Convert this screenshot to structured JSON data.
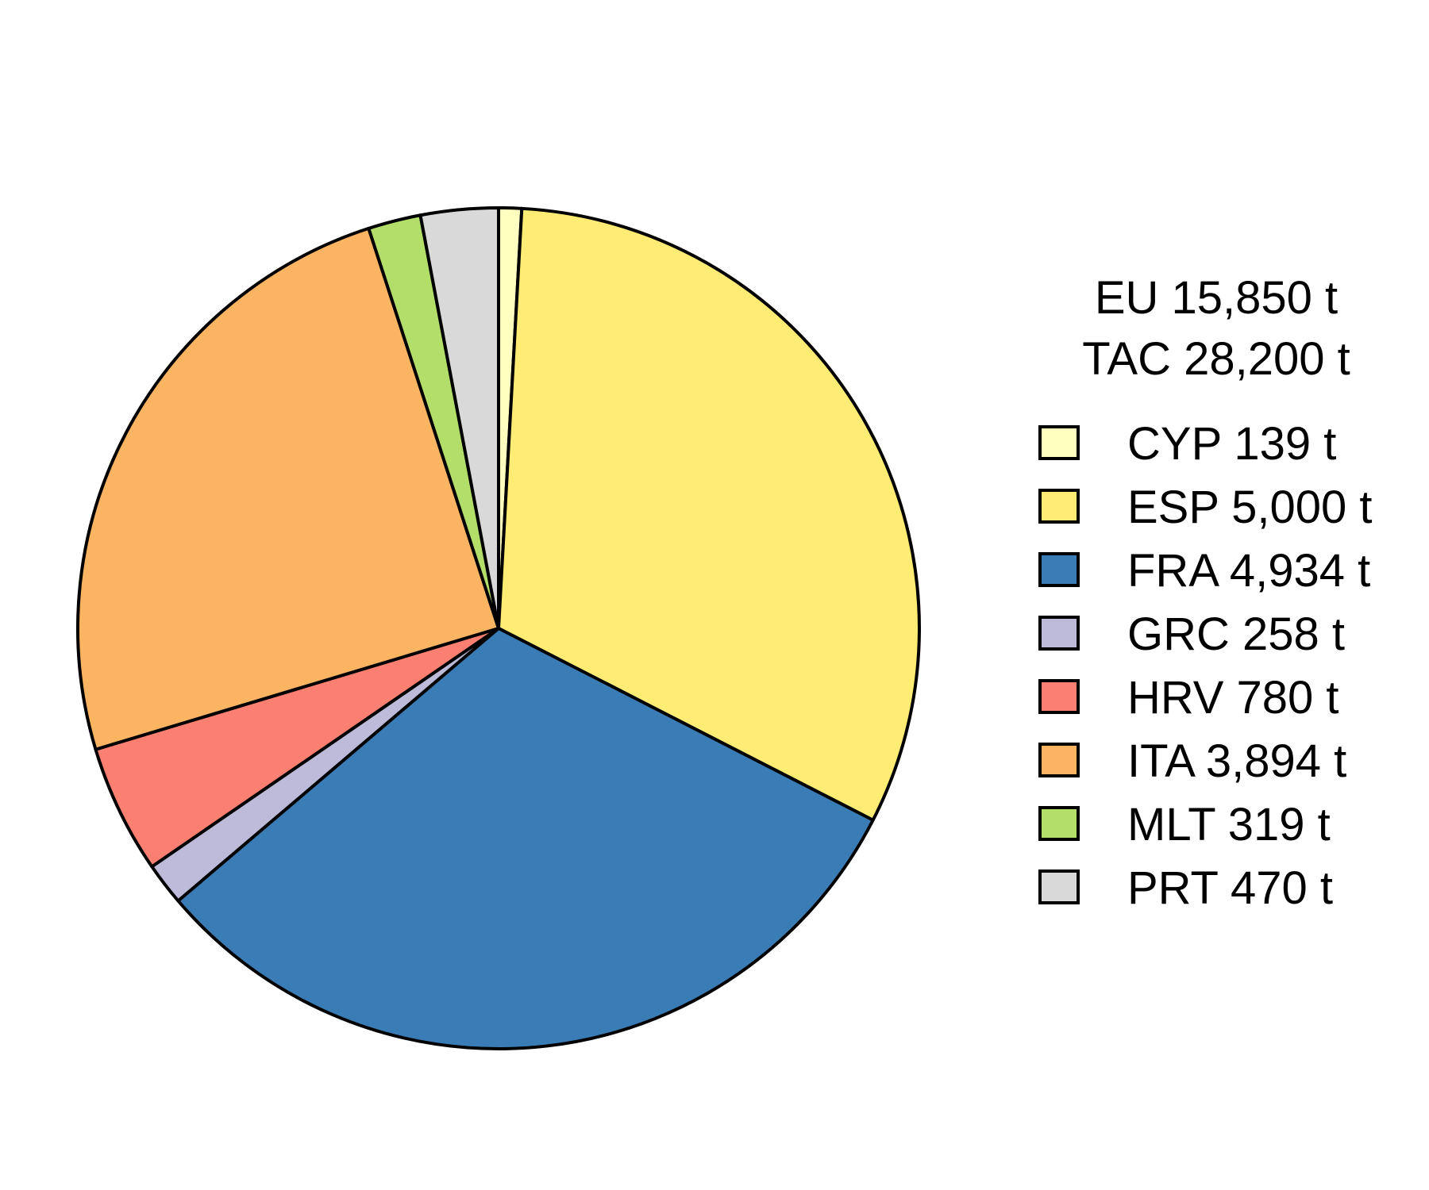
{
  "chart_data": {
    "type": "pie",
    "title_lines": [
      "EU 15,850 t",
      "TAC 28,200 t"
    ],
    "unit": "t",
    "start_angle_deg": 0,
    "direction": "clockwise",
    "slices": [
      {
        "label": "CYP 139 t",
        "code": "CYP",
        "value": 139,
        "color": "#FFFFBF"
      },
      {
        "label": "ESP 5,000 t",
        "code": "ESP",
        "value": 5000,
        "color": "#FEEC74"
      },
      {
        "label": "FRA 4,934 t",
        "code": "FRA",
        "value": 4934,
        "color": "#3A7DB6"
      },
      {
        "label": "GRC 258 t",
        "code": "GRC",
        "value": 258,
        "color": "#BEBADA"
      },
      {
        "label": "HRV 780 t",
        "code": "HRV",
        "value": 780,
        "color": "#FB8072"
      },
      {
        "label": "ITA 3,894 t",
        "code": "ITA",
        "value": 3894,
        "color": "#FBB462"
      },
      {
        "label": "MLT 319 t",
        "code": "MLT",
        "value": 319,
        "color": "#B3DE69"
      },
      {
        "label": "PRT 470 t",
        "code": "PRT",
        "value": 470,
        "color": "#D9D9D9"
      }
    ],
    "legend_position": "right"
  }
}
